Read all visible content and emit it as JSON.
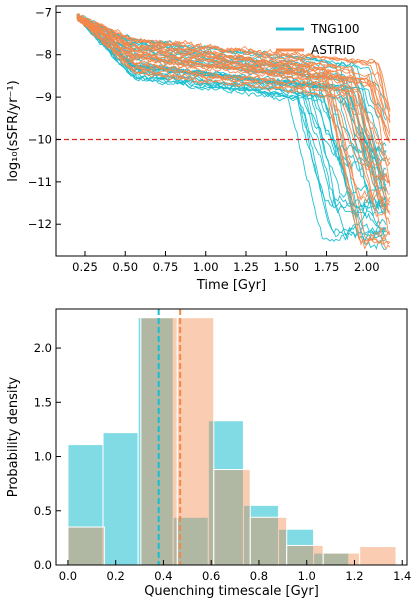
{
  "colors": {
    "tng": "#17becf",
    "astrid": "#f4874b",
    "threshold": "#d62728",
    "frame": "#000000"
  },
  "chart_data": [
    {
      "type": "line",
      "xlabel": "Time [Gyr]",
      "ylabel": "log₁₀(sSFR/yr⁻¹)",
      "xlim": [
        0.07,
        2.25
      ],
      "ylim": [
        -12.75,
        -6.85
      ],
      "xticks": [
        0.25,
        0.5,
        0.75,
        1.0,
        1.25,
        1.5,
        1.75,
        2.0
      ],
      "xtick_labels": [
        "0.25",
        "0.50",
        "0.75",
        "1.00",
        "1.25",
        "1.50",
        "1.75",
        "2.00"
      ],
      "yticks": [
        -7,
        -8,
        -9,
        -10,
        -11,
        -12
      ],
      "ytick_labels": [
        "−7",
        "−8",
        "−9",
        "−10",
        "−11",
        "−12"
      ],
      "threshold": -10,
      "legend_position": "top-right",
      "series": [
        {
          "name": "TNG100",
          "color": "#17becf",
          "n_tracks": 34,
          "t_start": 0.2,
          "t_end": 2.12,
          "y_start": -7.1,
          "plateau": [
            -8.0,
            -8.9
          ],
          "quench_time_range": [
            1.5,
            2.05
          ],
          "final_range": [
            -10.2,
            -12.4
          ]
        },
        {
          "name": "ASTRID",
          "color": "#f4874b",
          "n_tracks": 30,
          "t_start": 0.2,
          "t_end": 2.15,
          "y_start": -7.1,
          "plateau": [
            -7.9,
            -8.8
          ],
          "quench_time_range": [
            1.72,
            2.08
          ],
          "final_range": [
            -10.4,
            -12.5
          ]
        }
      ]
    },
    {
      "type": "bar",
      "xlabel": "Quenching timescale [Gyr]",
      "ylabel": "Probability density",
      "xlim": [
        -0.05,
        1.42
      ],
      "ylim": [
        0,
        2.36
      ],
      "xticks": [
        0.0,
        0.2,
        0.4,
        0.6,
        0.8,
        1.0,
        1.2,
        1.4
      ],
      "xtick_labels": [
        "0.0",
        "0.2",
        "0.4",
        "0.6",
        "0.8",
        "1.0",
        "1.2",
        "1.4"
      ],
      "yticks": [
        0.0,
        0.5,
        1.0,
        1.5,
        2.0
      ],
      "ytick_labels": [
        "0.0",
        "0.5",
        "1.0",
        "1.5",
        "2.0"
      ],
      "series": [
        {
          "name": "TNG100",
          "color": "#17becf",
          "bin_edges": [
            0.0,
            0.147,
            0.294,
            0.441,
            0.588,
            0.735,
            0.882,
            1.029,
            1.176
          ],
          "values": [
            1.11,
            1.22,
            2.28,
            0.44,
            1.33,
            0.55,
            0.33,
            0.11
          ],
          "mean": 0.38
        },
        {
          "name": "ASTRID",
          "color": "#f4874b",
          "bin_edges": [
            0.0,
            0.1527,
            0.3054,
            0.4581,
            0.6108,
            0.7635,
            0.9162,
            1.0689,
            1.2216,
            1.3743
          ],
          "values": [
            0.35,
            0.0,
            2.28,
            2.28,
            0.88,
            0.44,
            0.18,
            0.11,
            0.17
          ],
          "mean": 0.47
        }
      ]
    }
  ]
}
